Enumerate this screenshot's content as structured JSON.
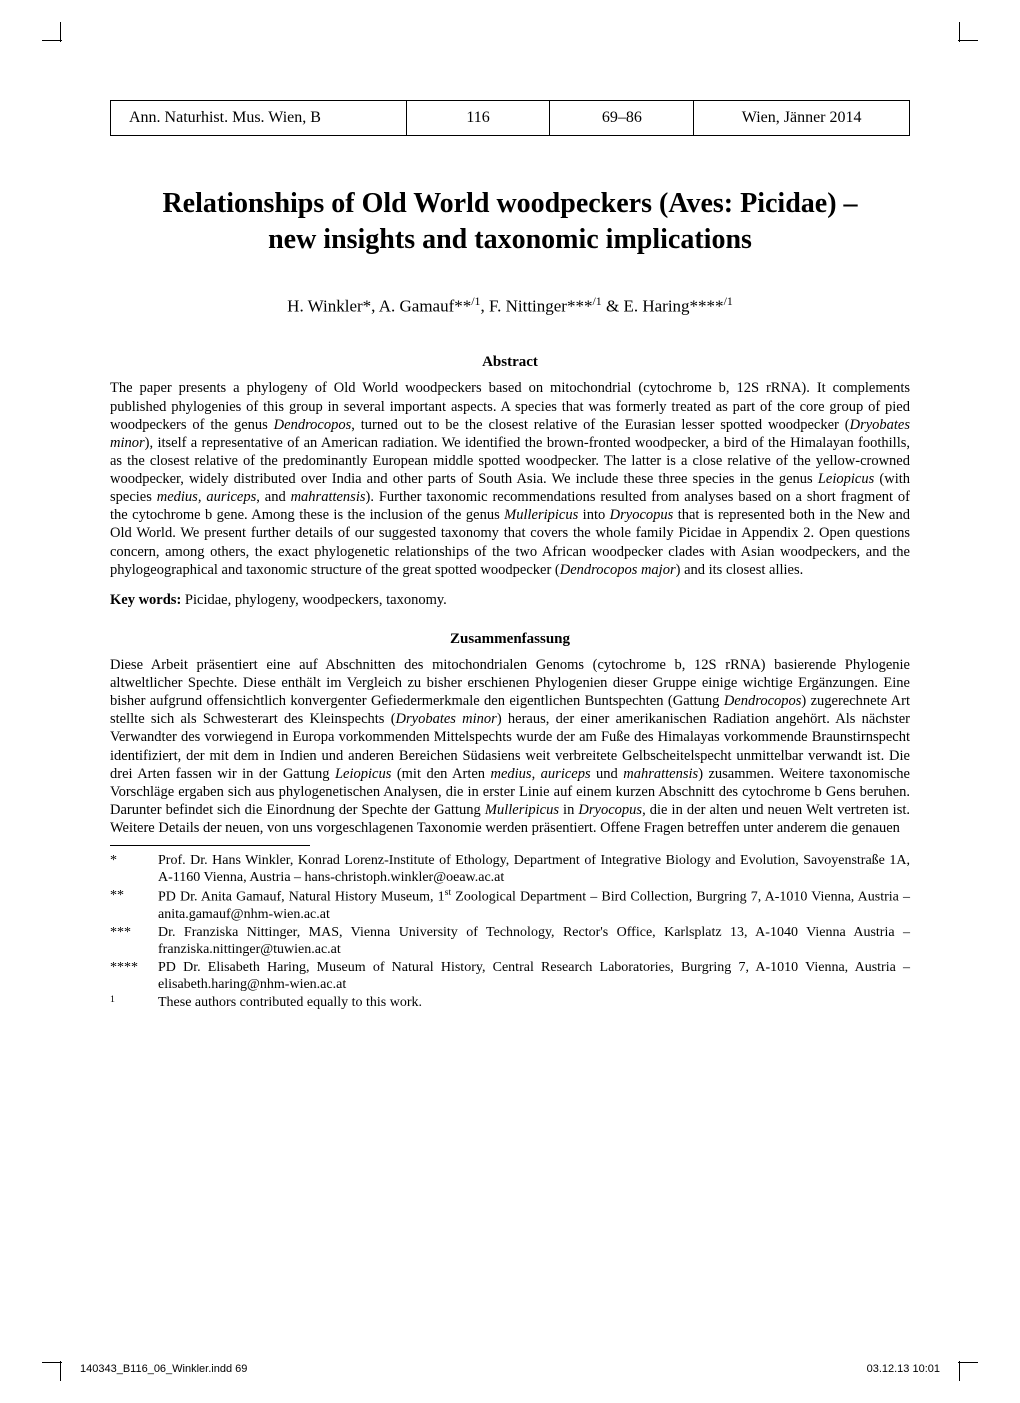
{
  "header": {
    "journal": "Ann. Naturhist. Mus. Wien, B",
    "volume": "116",
    "pages": "69–86",
    "location_date": "Wien, Jänner 2014"
  },
  "title_line1": "Relationships of Old World woodpeckers (Aves: Picidae) –",
  "title_line2": "new insights and taxonomic implications",
  "authors_html": "H. Winkler*, A. Gamauf**/1, F. Nittinger***/1 & E. Haring****/1",
  "abstract_heading": "Abstract",
  "abstract_html": "The paper presents a phylogeny of Old World woodpeckers based on mitochondrial (cytochrome b, 12S rRNA). It complements published phylogenies of this group in several important aspects. A species that was formerly treated as part of the core group of pied woodpeckers of the genus <span class=\"italic\">Dendrocopos</span>, turned out to be the closest relative of the Eurasian lesser spotted woodpecker (<span class=\"italic\">Dryobates minor</span>), itself a representative of an American radiation. We identified the brown-fronted woodpecker, a bird of the Himalayan foothills, as the closest relative of the predominantly European middle spotted woodpecker. The latter is a close relative of the yellow-crowned woodpecker, widely distributed over India and other parts of South Asia. We include these three species in the genus <span class=\"italic\">Leiopicus</span> (with species <span class=\"italic\">medius, auriceps</span>, and <span class=\"italic\">mahrattensis</span>). Further taxonomic recommendations resulted from analyses based on a short fragment of the cytochrome b gene. Among these is the inclusion of the genus <span class=\"italic\">Mulleripicus</span> into <span class=\"italic\">Dryocopus</span> that is represented both in the New and Old World. We present further details of our suggested taxonomy that covers the whole family Picidae in Appendix 2. Open questions concern, among others, the exact phylogenetic relationships of the two African woodpecker clades with Asian woodpeckers, and the phylogeographical and taxonomic structure of the great spotted woodpecker (<span class=\"italic\">Dendrocopos major</span>) and its closest allies.",
  "keywords_label": "Key words:",
  "keywords_text": " Picidae, phylogeny, woodpeckers, taxonomy.",
  "zusammen_heading": "Zusammenfassung",
  "zusammen_html": "Diese Arbeit präsentiert eine auf Abschnitten des mitochondrialen Genoms (cytochrome b, 12S rRNA) basierende Phylogenie altweltlicher Spechte. Diese enthält im Vergleich zu bisher erschienen Phylogenien dieser Gruppe einige wichtige Ergänzungen. Eine bisher aufgrund offensichtlich konvergenter Gefiedermerkmale den eigentlichen Buntspechten (Gattung <span class=\"italic\">Dendrocopos</span>) zugerechnete Art stellte sich als Schwesterart des Kleinspechts (<span class=\"italic\">Dryobates minor</span>) heraus, der einer amerikanischen Radiation angehört. Als nächster Verwandter des vorwiegend in Europa vorkommenden Mittelspechts wurde der am Fuße des Himalayas vorkommende Braunstirnspecht identifiziert, der mit dem in Indien und anderen Bereichen Südasiens weit verbreitete Gelbscheitelspecht unmittelbar verwandt ist. Die drei Arten fassen wir in der Gattung <span class=\"italic\">Leiopicus</span> (mit den Arten <span class=\"italic\">medius</span>, <span class=\"italic\">auriceps</span> und <span class=\"italic\">mahrattensis</span>) zusammen. Weitere taxonomische Vorschläge ergaben sich aus phylogenetischen Analysen, die in erster Linie auf einem kurzen Abschnitt des cytochrome b Gens beruhen. Darunter befindet sich die Einordnung der Spechte der Gattung <span class=\"italic\">Mulleripicus</span> in <span class=\"italic\">Dryocopus</span>, die in der alten und neuen Welt vertreten ist. Weitere Details der neuen, von uns vorgeschlagenen Taxonomie werden präsentiert. Offene Fragen betreffen unter anderem die genauen",
  "footnotes": [
    {
      "marker": "*",
      "text": "Prof. Dr. Hans Winkler, Konrad Lorenz-Institute of Ethology, Department of Integrative Biology and Evolution, Savoyenstraße 1A, A-1160 Vienna, Austria – hans-christoph.winkler@oeaw.ac.at"
    },
    {
      "marker": "**",
      "text_html": "PD Dr. Anita Gamauf, Natural History Museum, 1<span class=\"sup\">st</span> Zoological Department – Bird Collection, Burgring 7, A-1010 Vienna, Austria – anita.gamauf@nhm-wien.ac.at"
    },
    {
      "marker": "***",
      "text": "Dr. Franziska Nittinger, MAS, Vienna University of Technology, Rector's Office, Karlsplatz 13, A-1040 Vienna Austria – franziska.nittinger@tuwien.ac.at"
    },
    {
      "marker": "****",
      "text": "PD Dr. Elisabeth Haring, Museum of Natural History, Central Research Laboratories, Burgring 7, A-1010 Vienna, Austria – elisabeth.haring@nhm-wien.ac.at"
    },
    {
      "marker": "1",
      "text": "These authors contributed equally to this work."
    }
  ],
  "footer": {
    "left": "140343_B116_06_Winkler.indd   69",
    "right": "03.12.13   10:01"
  }
}
